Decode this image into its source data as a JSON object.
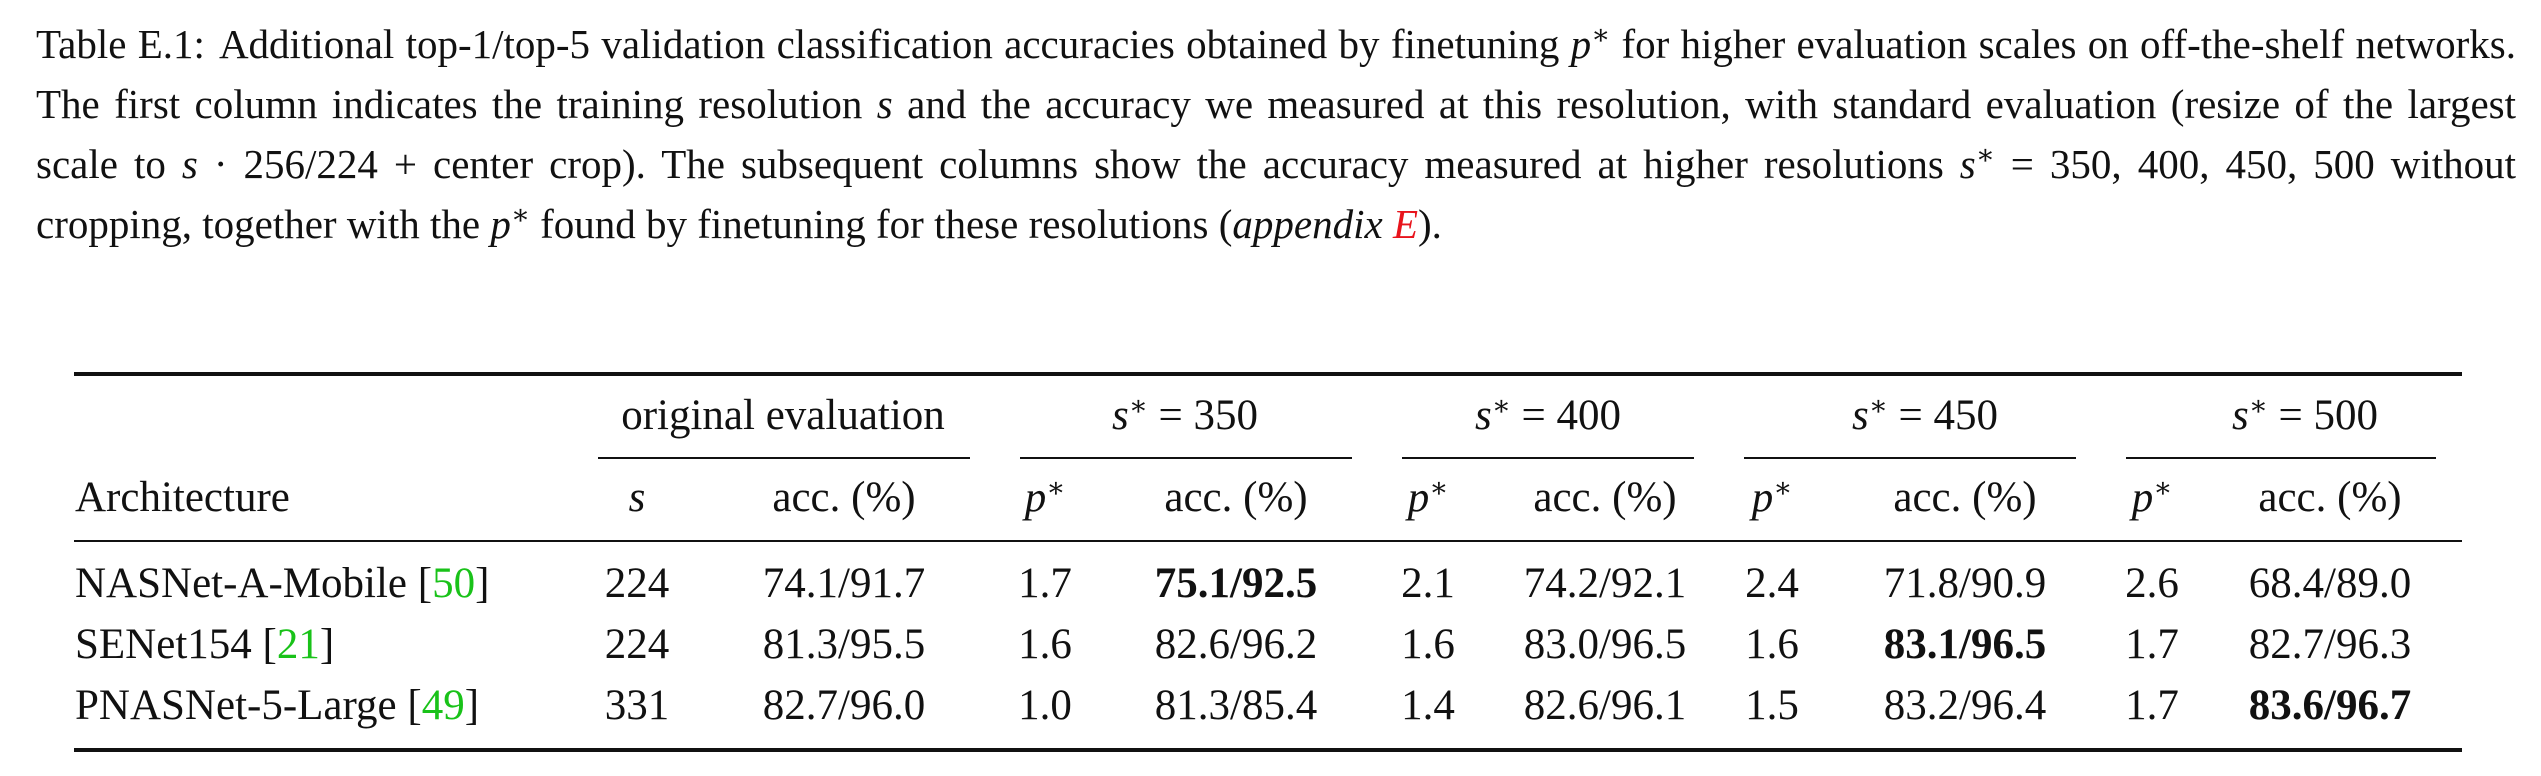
{
  "caption": {
    "label": "Table E.1:",
    "t1": "Additional top-1/top-5 validation classification accuracies obtained by finetuning ",
    "t2": " for higher evaluation scales on off-the-shelf networks. The first column indicates the training resolution ",
    "t3": " and the accuracy we measured at this resolution, with standard evaluation (resize of the largest scale to ",
    "t4": " · 256/224 + center crop). The subsequent columns show the accuracy measured at higher resolutions ",
    "t5": " = 350, 400, 450, 500 without cropping, together with the ",
    "t6": " found by finetuning for these resolutions (",
    "appendix_word": "appendix",
    "appendix_ref": "E",
    "t7": ")."
  },
  "table": {
    "groups": [
      "original evaluation",
      "= 350",
      "= 400",
      "= 450",
      "= 500"
    ],
    "columns": [
      "Architecture",
      "s",
      "acc. (%)"
    ],
    "rows": [
      {
        "arch": "NASNet-A-Mobile",
        "cite": "50",
        "s": "224",
        "acc": "74.1/91.7",
        "p350": "1.7",
        "acc350": "75.1/92.5",
        "p400": "2.1",
        "acc400": "74.2/92.1",
        "p450": "2.4",
        "acc450": "71.8/90.9",
        "p500": "2.6",
        "acc500": "68.4/89.0"
      },
      {
        "arch": "SENet154",
        "cite": "21",
        "s": "224",
        "acc": "81.3/95.5",
        "p350": "1.6",
        "acc350": "82.6/96.2",
        "p400": "1.6",
        "acc400": "83.0/96.5",
        "p450": "1.6",
        "acc450": "83.1/96.5",
        "p500": "1.7",
        "acc500": "82.7/96.3"
      },
      {
        "arch": "PNASNet-5-Large",
        "cite": "49",
        "s": "331",
        "acc": "82.7/96.0",
        "p350": "1.0",
        "acc350": "81.3/85.4",
        "p400": "1.4",
        "acc400": "82.6/96.1",
        "p450": "1.5",
        "acc450": "83.2/96.4",
        "p500": "1.7",
        "acc500": "83.6/96.7"
      }
    ]
  },
  "colors": {
    "citation": "#19c219",
    "reference_link": "#e8141c",
    "text": "#111111"
  }
}
